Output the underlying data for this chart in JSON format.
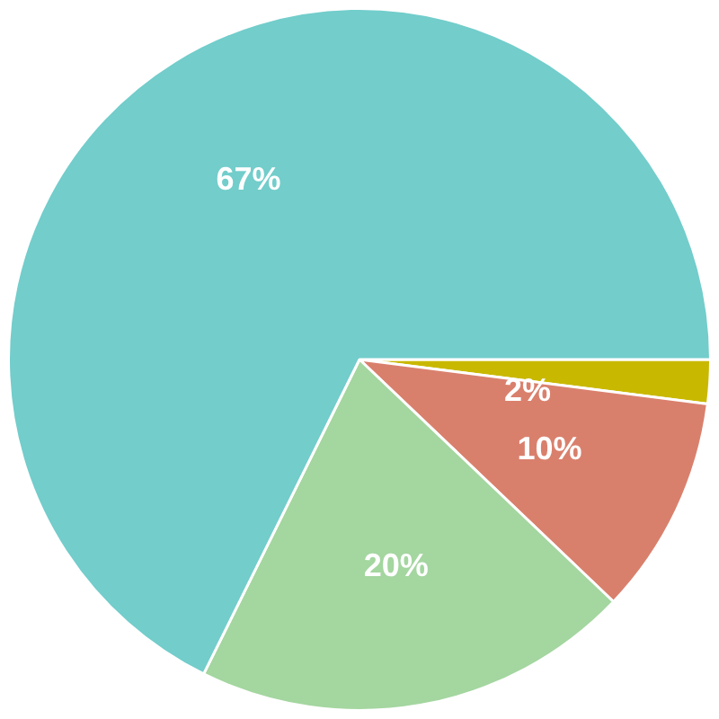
{
  "chart_data": {
    "type": "pie",
    "categories": [
      null,
      null,
      null,
      null
    ],
    "values": [
      2,
      10,
      20,
      67
    ],
    "colors": [
      "#c9b800",
      "#d9806d",
      "#a4d6a0",
      "#72cdcb"
    ],
    "value_labels": [
      "2%",
      "10%",
      "20%",
      "67%"
    ],
    "legend": false
  }
}
